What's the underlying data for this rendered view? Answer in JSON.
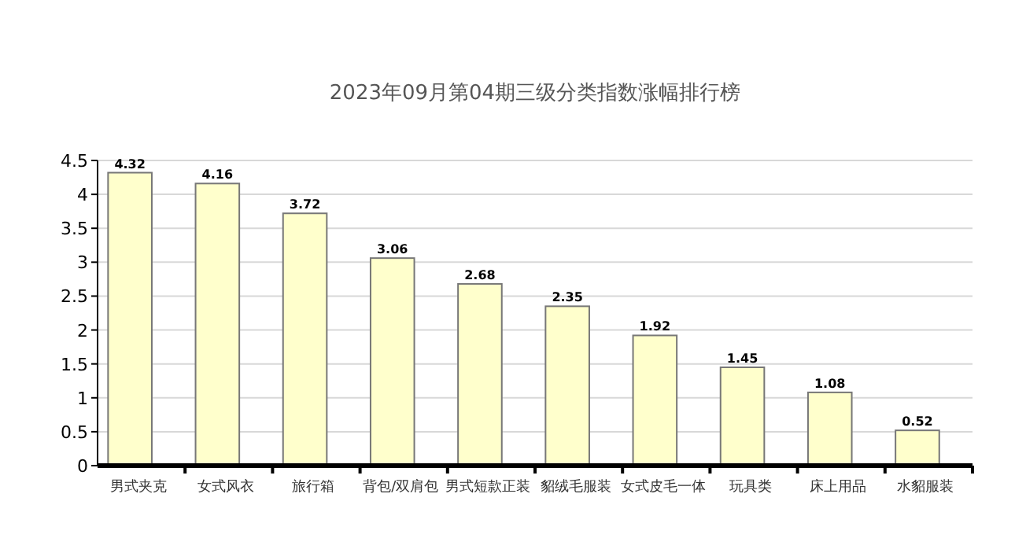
{
  "chart_data": {
    "type": "bar",
    "title": "2023年09月第04期三级分类指数涨幅排行榜",
    "categories": [
      "男式夹克",
      "女式风衣",
      "旅行箱",
      "背包/双肩包",
      "男式短款正装",
      "貂绒毛服装",
      "女式皮毛一体",
      "玩具类",
      "床上用品",
      "水貂服装"
    ],
    "values": [
      4.32,
      4.16,
      3.72,
      3.06,
      2.68,
      2.35,
      1.92,
      1.45,
      1.08,
      0.52
    ],
    "color": "#ffffcc",
    "ylim": [
      0,
      4.5
    ],
    "yticks": [
      0,
      0.5,
      1,
      1.5,
      2,
      2.5,
      3,
      3.5,
      4,
      4.5
    ],
    "grid": "y",
    "data_labels": true
  }
}
